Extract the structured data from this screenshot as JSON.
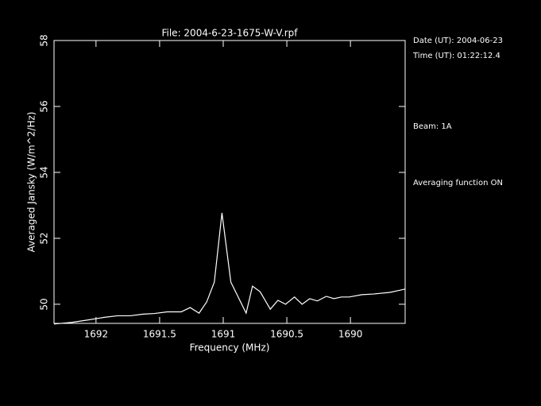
{
  "chart_data": {
    "type": "line",
    "title": "File: 2004-6-23-1675-W-V.rpf",
    "x_label": "Frequency (MHz)",
    "y_label": "Averaged Jansky (W/m^2/Hz)",
    "annotations": [
      "Date (UT): 2004-06-23",
      "Time (UT): 01:22:12.4",
      "Beam: 1A",
      "Averaging function ON"
    ],
    "x": [
      1692.33,
      1692.19,
      1692.07,
      1691.94,
      1691.83,
      1691.73,
      1691.63,
      1691.54,
      1691.44,
      1691.33,
      1691.26,
      1691.19,
      1691.13,
      1691.07,
      1691.01,
      1690.94,
      1690.88,
      1690.82,
      1690.77,
      1690.71,
      1690.63,
      1690.57,
      1690.51,
      1690.44,
      1690.38,
      1690.32,
      1690.26,
      1690.19,
      1690.13,
      1690.07,
      1690.01,
      1689.91,
      1689.82,
      1689.69,
      1689.57
    ],
    "series": [
      {
        "color": "#ffffff",
        "values": [
          49.4,
          49.45,
          49.52,
          49.6,
          49.65,
          49.65,
          49.7,
          49.72,
          49.77,
          49.77,
          49.9,
          49.73,
          50.07,
          50.67,
          52.77,
          50.67,
          50.2,
          49.73,
          50.55,
          50.38,
          49.85,
          50.12,
          50.0,
          50.22,
          50.0,
          50.17,
          50.1,
          50.24,
          50.17,
          50.22,
          50.22,
          50.29,
          50.31,
          50.36,
          50.46
        ]
      }
    ],
    "xlim": [
      1692.33,
      1689.57
    ],
    "ylim": [
      49.42,
      58
    ],
    "xticks": [
      1692,
      1691.5,
      1691,
      1690.5,
      1690
    ],
    "yticks": [
      50,
      52,
      54,
      56,
      58
    ]
  }
}
